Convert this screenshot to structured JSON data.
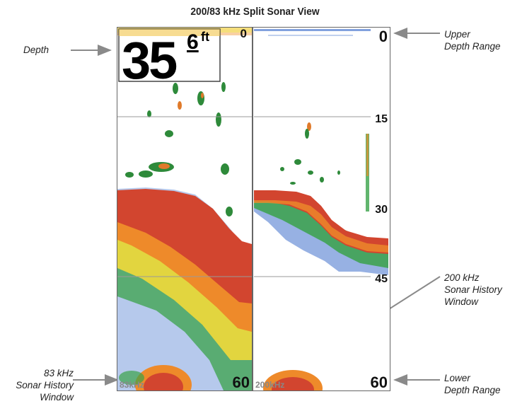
{
  "title": "200/83 kHz Split Sonar View",
  "depth_box": {
    "value": "35",
    "decimal": "6",
    "unit": "ft"
  },
  "left_panel": {
    "scale_top": "0",
    "scale_bottom": "60",
    "freq_label": "83kHz"
  },
  "right_panel": {
    "scale_top": "0",
    "scale_15": "15",
    "scale_30": "30",
    "scale_45": "45",
    "scale_bottom": "60",
    "freq_label": "200kHz"
  },
  "callouts": {
    "depth": "Depth",
    "upper_depth_range": [
      "Upper",
      "Depth Range"
    ],
    "lower_depth_range": [
      "Lower",
      "Depth Range"
    ],
    "history_200": [
      "200 kHz",
      "Sonar History",
      "Window"
    ],
    "history_83": [
      "83 kHz",
      "Sonar History",
      "Window"
    ]
  },
  "colors": {
    "sonar_red": "#d2452f",
    "sonar_orange": "#ee8a2a",
    "sonar_yellow": "#f1d93a",
    "sonar_green": "#3aa24a",
    "sonar_blue": "#2f63c8",
    "panel_border": "#666666"
  }
}
